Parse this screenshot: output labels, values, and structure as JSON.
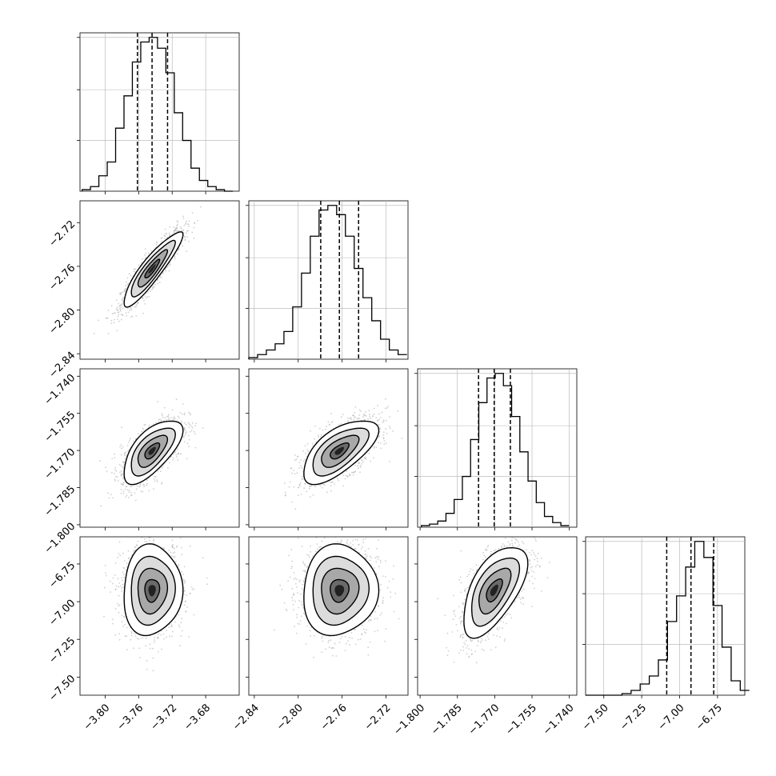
{
  "chart_data": {
    "type": "corner",
    "dimensions": [
      {
        "ticks": [
          -3.8,
          -3.76,
          -3.72,
          -3.68
        ],
        "tick_labels": [
          "−3.80",
          "−3.76",
          "−3.72",
          "−3.68"
        ],
        "range": [
          -3.83,
          -3.64
        ]
      },
      {
        "ticks": [
          -2.84,
          -2.8,
          -2.76,
          -2.72
        ],
        "tick_labels": [
          "−2.84",
          "−2.80",
          "−2.76",
          "−2.72"
        ],
        "range": [
          -2.845,
          -2.7
        ]
      },
      {
        "ticks": [
          -1.8,
          -1.785,
          -1.77,
          -1.755,
          -1.74
        ],
        "tick_labels": [
          "−1.800",
          "−1.785",
          "−1.770",
          "−1.755",
          "−1.740"
        ],
        "range": [
          -1.801,
          -1.737
        ]
      },
      {
        "ticks": [
          -7.5,
          -7.25,
          -7.0,
          -6.75
        ],
        "tick_labels": [
          "−7.50",
          "−7.25",
          "−7.00",
          "−6.75"
        ],
        "range": [
          -7.62,
          -6.57
        ]
      }
    ],
    "histograms": [
      {
        "bins": [
          -3.8275,
          -3.8175,
          -3.8075,
          -3.7975,
          -3.7875,
          -3.7775,
          -3.7675,
          -3.7575,
          -3.7475,
          -3.7375,
          -3.7275,
          -3.7175,
          -3.7075,
          -3.6975,
          -3.6875,
          -3.6775,
          -3.6675,
          -3.6575,
          -3.6475
        ],
        "counts": [
          1,
          3,
          10,
          19,
          41,
          62,
          84,
          97,
          100,
          93,
          77,
          51,
          33,
          15,
          7,
          3,
          1,
          0
        ],
        "quantiles": [
          -3.7615,
          -3.744,
          -3.7255
        ]
      },
      {
        "bins": [
          -2.845,
          -2.837,
          -2.829,
          -2.821,
          -2.813,
          -2.805,
          -2.797,
          -2.789,
          -2.781,
          -2.773,
          -2.765,
          -2.757,
          -2.749,
          -2.741,
          -2.733,
          -2.725,
          -2.717,
          -2.709,
          -2.701
        ],
        "counts": [
          1,
          3,
          6,
          10,
          18,
          34,
          56,
          80,
          97,
          100,
          94,
          80,
          59,
          40,
          25,
          13,
          6,
          3
        ],
        "quantiles": [
          -2.7795,
          -2.7625,
          -2.745
        ]
      },
      {
        "bins": [
          -1.7995,
          -1.7962,
          -1.7929,
          -1.7896,
          -1.7863,
          -1.783,
          -1.7797,
          -1.7764,
          -1.7731,
          -1.7698,
          -1.7665,
          -1.7632,
          -1.7599,
          -1.7566,
          -1.7533,
          -1.75,
          -1.7467,
          -1.7434,
          -1.7401
        ],
        "counts": [
          1,
          2,
          4,
          9,
          18,
          33,
          57,
          81,
          97,
          100,
          92,
          72,
          49,
          30,
          16,
          7,
          3,
          1
        ],
        "quantiles": [
          -1.7765,
          -1.7702,
          -1.7637
        ]
      },
      {
        "bins": [
          -7.62,
          -7.56,
          -7.5,
          -7.44,
          -7.38,
          -7.32,
          -7.26,
          -7.2,
          -7.14,
          -7.08,
          -7.02,
          -6.96,
          -6.9,
          -6.84,
          -6.78,
          -6.72,
          -6.66,
          -6.6,
          -6.54
        ],
        "counts": [
          0,
          0,
          0,
          0,
          1,
          3,
          7,
          12,
          22,
          46,
          62,
          80,
          96,
          86,
          56,
          30,
          9,
          3
        ],
        "quantiles": [
          -7.085,
          -6.925,
          -6.775
        ]
      }
    ],
    "pairs": [
      {
        "row": 1,
        "col": 0,
        "mean": [
          -3.744,
          -2.7625
        ],
        "std": [
          0.0175,
          0.017
        ],
        "rho": 0.9
      },
      {
        "row": 2,
        "col": 0,
        "mean": [
          -3.744,
          -1.7702
        ],
        "std": [
          0.0175,
          0.0064
        ],
        "rho": 0.65
      },
      {
        "row": 2,
        "col": 1,
        "mean": [
          -2.7625,
          -1.7702
        ],
        "std": [
          0.017,
          0.0064
        ],
        "rho": 0.65
      },
      {
        "row": 3,
        "col": 0,
        "mean": [
          -3.744,
          -6.925
        ],
        "std": [
          0.0175,
          0.15
        ],
        "rho": 0.05
      },
      {
        "row": 3,
        "col": 1,
        "mean": [
          -2.7625,
          -6.925
        ],
        "std": [
          0.017,
          0.15
        ],
        "rho": 0.05
      },
      {
        "row": 3,
        "col": 2,
        "mean": [
          -1.7702,
          -6.925
        ],
        "std": [
          0.0064,
          0.15
        ],
        "rho": 0.6
      }
    ],
    "contour_levels_sigma": [
      0.5,
      1.0,
      1.5,
      2.0
    ],
    "grid": true,
    "colors": {
      "line": "#000000",
      "grid": "#b0b0b0",
      "points": "#a9a9a9"
    }
  }
}
